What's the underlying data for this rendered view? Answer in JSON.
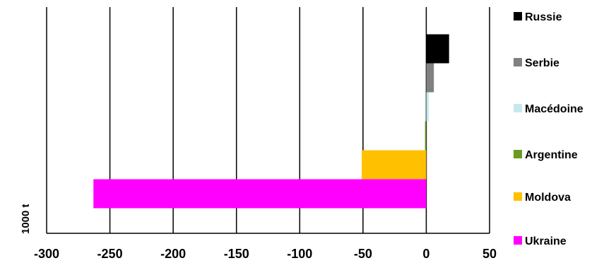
{
  "chart_data": {
    "type": "bar",
    "orientation": "horizontal",
    "title": "",
    "xlabel": "",
    "ylabel": "1000 t",
    "xlim": [
      -300,
      50
    ],
    "xticks": [
      -300,
      -250,
      -200,
      -150,
      -100,
      -50,
      0,
      50
    ],
    "grid": "vertical",
    "legend_position": "right",
    "categories": [
      "Russie",
      "Serbie",
      "Macédoine",
      "Argentine",
      "Moldova",
      "Ukraine"
    ],
    "values": [
      18,
      6,
      2,
      -1,
      -51,
      -263
    ],
    "colors": [
      "#000000",
      "#808080",
      "#c6e8ec",
      "#6a9a1f",
      "#ffc000",
      "#ff00ff"
    ]
  }
}
